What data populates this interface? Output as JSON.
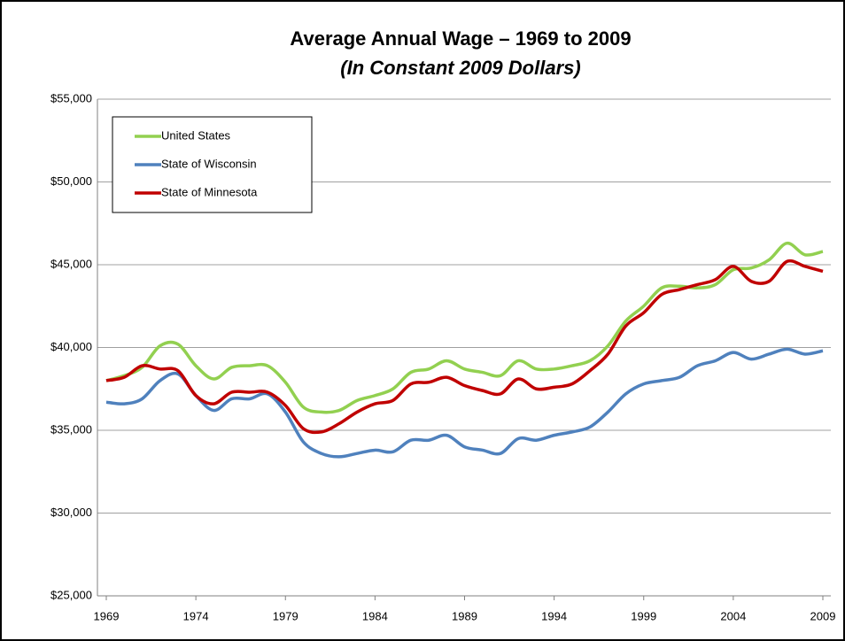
{
  "chart_data": {
    "type": "line",
    "title": "Average Annual Wage – 1969 to 2009",
    "subtitle": "(In Constant 2009 Dollars)",
    "x": [
      1969,
      1970,
      1971,
      1972,
      1973,
      1974,
      1975,
      1976,
      1977,
      1978,
      1979,
      1980,
      1981,
      1982,
      1983,
      1984,
      1985,
      1986,
      1987,
      1988,
      1989,
      1990,
      1991,
      1992,
      1993,
      1994,
      1995,
      1996,
      1997,
      1998,
      1999,
      2000,
      2001,
      2002,
      2003,
      2004,
      2005,
      2006,
      2007,
      2008,
      2009
    ],
    "series": [
      {
        "name": "United States",
        "color": "#92d050",
        "values": [
          38000,
          38300,
          38800,
          40100,
          40200,
          38900,
          38100,
          38800,
          38900,
          38900,
          37900,
          36400,
          36100,
          36200,
          36800,
          37100,
          37500,
          38500,
          38700,
          39200,
          38700,
          38500,
          38300,
          39200,
          38700,
          38700,
          38900,
          39200,
          40100,
          41600,
          42500,
          43600,
          43700,
          43600,
          43800,
          44700,
          44800,
          45300,
          46300,
          45600,
          45800
        ]
      },
      {
        "name": "State of Wisconsin",
        "color": "#4f81bd",
        "values": [
          36700,
          36600,
          36900,
          38000,
          38400,
          37100,
          36200,
          36900,
          36900,
          37200,
          36100,
          34300,
          33600,
          33400,
          33600,
          33800,
          33700,
          34400,
          34400,
          34700,
          34000,
          33800,
          33600,
          34500,
          34400,
          34700,
          34900,
          35200,
          36100,
          37200,
          37800,
          38000,
          38200,
          38900,
          39200,
          39700,
          39300,
          39600,
          39900,
          39600,
          39800
        ]
      },
      {
        "name": "State of Minnesota",
        "color": "#c00000",
        "values": [
          38000,
          38200,
          38900,
          38700,
          38600,
          37100,
          36600,
          37300,
          37300,
          37300,
          36500,
          35100,
          34900,
          35400,
          36100,
          36600,
          36800,
          37800,
          37900,
          38200,
          37700,
          37400,
          37200,
          38100,
          37500,
          37600,
          37800,
          38600,
          39600,
          41300,
          42100,
          43200,
          43500,
          43800,
          44100,
          44900,
          44000,
          44000,
          45200,
          44900,
          44600
        ]
      }
    ],
    "xlim": [
      1969,
      2009
    ],
    "xticks": [
      1969,
      1974,
      1979,
      1984,
      1989,
      1994,
      1999,
      2004,
      2009
    ],
    "ylim": [
      25000,
      55000
    ],
    "yticks": [
      {
        "value": 25000,
        "label": "$25,000"
      },
      {
        "value": 30000,
        "label": "$30,000"
      },
      {
        "value": 35000,
        "label": "$35,000"
      },
      {
        "value": 40000,
        "label": "$40,000"
      },
      {
        "value": 45000,
        "label": "$45,000"
      },
      {
        "value": 50000,
        "label": "$50,000"
      },
      {
        "value": 55000,
        "label": "$55,000"
      }
    ],
    "grid": true,
    "legend": "upper left"
  }
}
